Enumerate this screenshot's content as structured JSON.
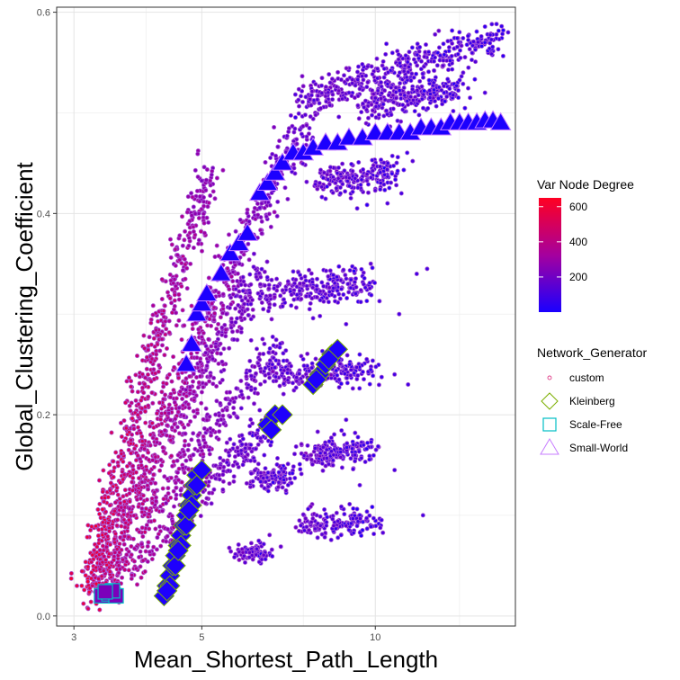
{
  "chart_data": {
    "type": "scatter",
    "xlabel": "Mean_Shortest_Path_Length",
    "ylabel": "Global_Clustering_Coefficient",
    "x_scale": "log",
    "xlim": [
      2.8,
      17.5
    ],
    "ylim": [
      -0.01,
      0.605
    ],
    "x_ticks": [
      3,
      5,
      10
    ],
    "y_ticks": [
      0.0,
      0.2,
      0.4,
      0.6
    ],
    "y_tick_labels": [
      "0.0",
      "0.2",
      "0.4",
      "0.6"
    ],
    "grid": true,
    "colors": {
      "degree_low": "#1a00ff",
      "degree_mid": "#a5009e",
      "degree_high": "#ff0022",
      "point_outline": "#a855d6",
      "kleinberg_outline": "#7cae00",
      "scalefree_outline": "#00bfc4",
      "smallworld_outline": "#c77cff"
    },
    "color_legend": {
      "title": "Var Node Degree",
      "breaks": [
        200,
        400,
        600
      ],
      "labels": [
        "200",
        "400",
        "600"
      ],
      "range": [
        0,
        650
      ]
    },
    "shape_legend": {
      "title": "Network_Generator",
      "entries": [
        {
          "label": "custom",
          "shape": "circle-small"
        },
        {
          "label": "Kleinberg",
          "shape": "diamond"
        },
        {
          "label": "Scale-Free",
          "shape": "square"
        },
        {
          "label": "Small-World",
          "shape": "triangle"
        }
      ]
    },
    "custom_clusters": [
      {
        "x0": 3.15,
        "x1": 5.2,
        "y0": 0.02,
        "y1": 0.44,
        "deg0": 600,
        "deg1": 260,
        "n": 520,
        "spread": 0.012
      },
      {
        "x0": 3.2,
        "x1": 7.8,
        "y0": 0.02,
        "y1": 0.51,
        "deg0": 560,
        "deg1": 120,
        "n": 620,
        "spread": 0.016
      },
      {
        "x0": 3.3,
        "x1": 6.3,
        "y0": 0.03,
        "y1": 0.34,
        "deg0": 520,
        "deg1": 150,
        "n": 420,
        "spread": 0.012
      },
      {
        "x0": 3.4,
        "x1": 6.8,
        "y0": 0.03,
        "y1": 0.27,
        "deg0": 480,
        "deg1": 120,
        "n": 360,
        "spread": 0.01
      },
      {
        "x0": 3.6,
        "x1": 6.5,
        "y0": 0.03,
        "y1": 0.19,
        "deg0": 420,
        "deg1": 100,
        "n": 260,
        "spread": 0.009
      },
      {
        "x0": 7.6,
        "x1": 16.5,
        "y0": 0.51,
        "y1": 0.575,
        "deg0": 160,
        "deg1": 60,
        "n": 420,
        "spread": 0.01
      },
      {
        "x0": 9.5,
        "x1": 14.0,
        "y0": 0.505,
        "y1": 0.525,
        "deg0": 140,
        "deg1": 60,
        "n": 260,
        "spread": 0.008
      },
      {
        "x0": 8.0,
        "x1": 11.0,
        "y0": 0.43,
        "y1": 0.44,
        "deg0": 140,
        "deg1": 70,
        "n": 200,
        "spread": 0.008
      },
      {
        "x0": 6.2,
        "x1": 9.8,
        "y0": 0.32,
        "y1": 0.33,
        "deg0": 160,
        "deg1": 70,
        "n": 260,
        "spread": 0.009
      },
      {
        "x0": 6.6,
        "x1": 10.0,
        "y0": 0.24,
        "y1": 0.245,
        "deg0": 150,
        "deg1": 60,
        "n": 200,
        "spread": 0.008
      },
      {
        "x0": 7.5,
        "x1": 10.0,
        "y0": 0.16,
        "y1": 0.165,
        "deg0": 150,
        "deg1": 60,
        "n": 170,
        "spread": 0.007
      },
      {
        "x0": 6.2,
        "x1": 7.2,
        "y0": 0.135,
        "y1": 0.14,
        "deg0": 160,
        "deg1": 80,
        "n": 110,
        "spread": 0.007
      },
      {
        "x0": 7.5,
        "x1": 10.0,
        "y0": 0.09,
        "y1": 0.095,
        "deg0": 150,
        "deg1": 60,
        "n": 170,
        "spread": 0.007
      },
      {
        "x0": 5.8,
        "x1": 6.5,
        "y0": 0.062,
        "y1": 0.065,
        "deg0": 180,
        "deg1": 90,
        "n": 90,
        "spread": 0.005
      }
    ],
    "kleinberg_points": [
      [
        4.3,
        0.02
      ],
      [
        4.35,
        0.03
      ],
      [
        4.4,
        0.04
      ],
      [
        4.45,
        0.05
      ],
      [
        4.5,
        0.06
      ],
      [
        4.55,
        0.07
      ],
      [
        4.6,
        0.08
      ],
      [
        4.65,
        0.09
      ],
      [
        4.7,
        0.1
      ],
      [
        4.75,
        0.11
      ],
      [
        4.8,
        0.12
      ],
      [
        4.85,
        0.13
      ],
      [
        4.9,
        0.14
      ],
      [
        4.4,
        0.03
      ],
      [
        4.5,
        0.05
      ],
      [
        4.6,
        0.07
      ],
      [
        4.7,
        0.09
      ],
      [
        4.8,
        0.11
      ],
      [
        4.9,
        0.13
      ],
      [
        5.0,
        0.145
      ],
      [
        4.35,
        0.025
      ],
      [
        4.55,
        0.065
      ],
      [
        4.75,
        0.105
      ],
      [
        6.5,
        0.19
      ],
      [
        6.7,
        0.2
      ],
      [
        6.9,
        0.2
      ],
      [
        6.6,
        0.185
      ],
      [
        7.8,
        0.23
      ],
      [
        8.0,
        0.24
      ],
      [
        8.2,
        0.25
      ],
      [
        8.4,
        0.26
      ],
      [
        8.6,
        0.265
      ],
      [
        7.9,
        0.235
      ],
      [
        8.3,
        0.255
      ]
    ],
    "scalefree_points": [
      [
        3.35,
        0.02
      ],
      [
        3.45,
        0.022
      ],
      [
        3.55,
        0.02
      ],
      [
        3.5,
        0.025
      ],
      [
        3.4,
        0.024
      ]
    ],
    "smallworld_points": [
      [
        4.7,
        0.25
      ],
      [
        4.8,
        0.27
      ],
      [
        4.9,
        0.3
      ],
      [
        5.0,
        0.31
      ],
      [
        5.1,
        0.32
      ],
      [
        5.4,
        0.34
      ],
      [
        5.6,
        0.36
      ],
      [
        5.8,
        0.37
      ],
      [
        6.0,
        0.38
      ],
      [
        6.3,
        0.42
      ],
      [
        6.5,
        0.43
      ],
      [
        6.7,
        0.44
      ],
      [
        6.9,
        0.45
      ],
      [
        7.2,
        0.46
      ],
      [
        7.5,
        0.46
      ],
      [
        7.8,
        0.465
      ],
      [
        8.2,
        0.47
      ],
      [
        8.6,
        0.47
      ],
      [
        9.0,
        0.475
      ],
      [
        9.5,
        0.475
      ],
      [
        10.0,
        0.48
      ],
      [
        10.5,
        0.48
      ],
      [
        11.0,
        0.48
      ],
      [
        11.5,
        0.48
      ],
      [
        12.0,
        0.485
      ],
      [
        12.5,
        0.485
      ],
      [
        13.0,
        0.485
      ],
      [
        13.5,
        0.49
      ],
      [
        14.0,
        0.49
      ],
      [
        14.5,
        0.49
      ],
      [
        15.0,
        0.49
      ],
      [
        15.5,
        0.492
      ],
      [
        16.0,
        0.492
      ],
      [
        16.5,
        0.49
      ]
    ]
  }
}
